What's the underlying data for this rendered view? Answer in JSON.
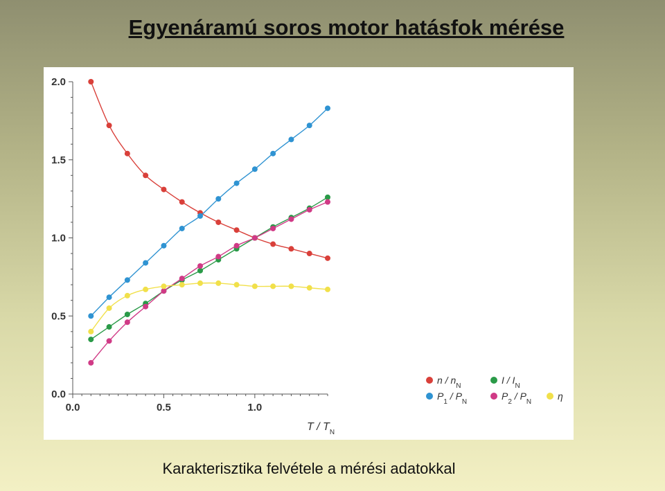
{
  "slide": {
    "title": "Egyenáramú soros motor hatásfok mérése",
    "caption": "Karakterisztika felvétele a mérési adatokkal"
  },
  "chart_data": {
    "type": "line",
    "xlabel": "T / T_N",
    "ylabel": "",
    "xlim": [
      0,
      1.4
    ],
    "ylim": [
      0,
      2.0
    ],
    "x_ticks": [
      "0.0",
      "0.5",
      "1.0"
    ],
    "y_ticks": [
      "0.0",
      "0.5",
      "1.0",
      "1.5",
      "2.0"
    ],
    "x": [
      0.1,
      0.2,
      0.3,
      0.4,
      0.5,
      0.6,
      0.7,
      0.8,
      0.9,
      1.0,
      1.1,
      1.2,
      1.3,
      1.4
    ],
    "legend_position": "bottom-right",
    "series": [
      {
        "name": "n / n_N",
        "color": "#d9403a",
        "values": [
          2.0,
          1.72,
          1.54,
          1.4,
          1.31,
          1.23,
          1.16,
          1.1,
          1.05,
          1.0,
          0.96,
          0.93,
          0.9,
          0.87
        ]
      },
      {
        "name": "I / I_N",
        "color": "#2a9a48",
        "values": [
          0.35,
          0.43,
          0.51,
          0.58,
          0.66,
          0.73,
          0.79,
          0.86,
          0.93,
          1.0,
          1.07,
          1.13,
          1.19,
          1.26
        ]
      },
      {
        "name": "P_1 / P_N",
        "color": "#2f93d2",
        "values": [
          0.5,
          0.62,
          0.73,
          0.84,
          0.95,
          1.06,
          1.14,
          1.25,
          1.35,
          1.44,
          1.54,
          1.63,
          1.72,
          1.83
        ]
      },
      {
        "name": "P_2 / P_N",
        "color": "#d03a86",
        "values": [
          0.2,
          0.34,
          0.46,
          0.56,
          0.66,
          0.74,
          0.82,
          0.88,
          0.95,
          1.0,
          1.06,
          1.12,
          1.18,
          1.23
        ]
      },
      {
        "name": "η",
        "color": "#f1e04a",
        "values": [
          0.4,
          0.55,
          0.63,
          0.67,
          0.69,
          0.7,
          0.71,
          0.71,
          0.7,
          0.69,
          0.69,
          0.69,
          0.68,
          0.67
        ]
      }
    ]
  }
}
